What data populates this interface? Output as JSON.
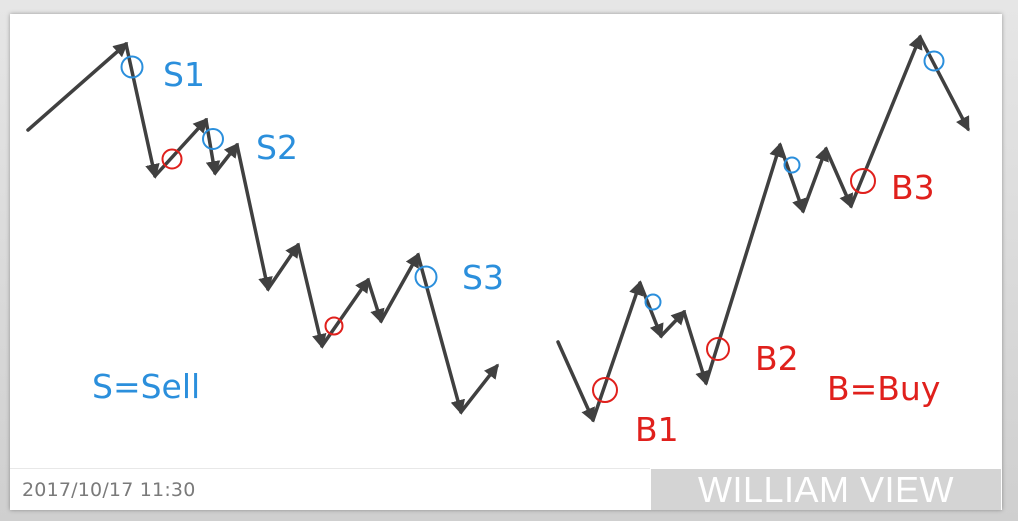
{
  "colors": {
    "sell": "#2b8fdc",
    "buy": "#e0201c",
    "arrow": "#404040"
  },
  "labels": {
    "s1": "S1",
    "s2": "S2",
    "s3": "S3",
    "b1": "B1",
    "b2": "B2",
    "b3": "B3"
  },
  "legend": {
    "sell": "S=Sell",
    "buy": "B=Buy"
  },
  "footer": {
    "timestamp": "2017/10/17 11:30",
    "brand": "WILLIAM VIEW"
  }
}
